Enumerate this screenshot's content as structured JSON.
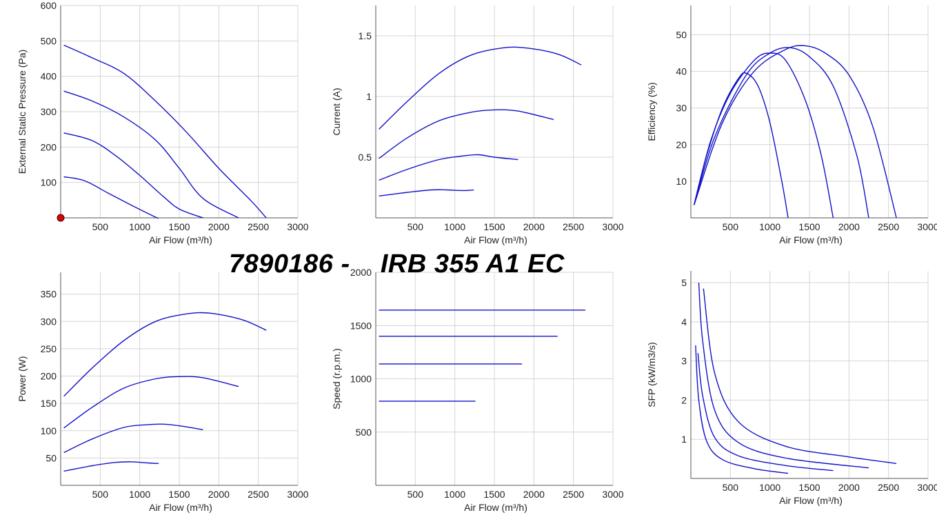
{
  "title": "7890186 -    IRB 355 A1 EC",
  "colors": {
    "curve": "#1010c8",
    "grid": "#d4d4d4",
    "marker": "#e00000"
  },
  "chart_data": [
    {
      "type": "line",
      "xlabel": "Air Flow (m³/h)",
      "ylabel": "External Static Pressure (Pa)",
      "xlim": [
        0,
        3000
      ],
      "ylim": [
        0,
        600
      ],
      "xticks": [
        500,
        1000,
        1500,
        2000,
        2500,
        3000
      ],
      "xtick_labels": [
        "500",
        "1000",
        "1500",
        "2000",
        "2500",
        "3000"
      ],
      "yticks": [
        100,
        200,
        300,
        400,
        500,
        600
      ],
      "ytick_labels": [
        "100",
        "200",
        "300",
        "400",
        "500",
        "600"
      ],
      "grid": true,
      "marker": {
        "x": 0,
        "y": 0
      },
      "series": [
        {
          "points": [
            [
              40,
              488
            ],
            [
              400,
              452
            ],
            [
              800,
              408
            ],
            [
              1200,
              330
            ],
            [
              1600,
              240
            ],
            [
              2000,
              140
            ],
            [
              2400,
              50
            ],
            [
              2600,
              0
            ]
          ]
        },
        {
          "points": [
            [
              40,
              358
            ],
            [
              400,
              330
            ],
            [
              800,
              285
            ],
            [
              1200,
              220
            ],
            [
              1500,
              140
            ],
            [
              1800,
              55
            ],
            [
              2250,
              0
            ]
          ]
        },
        {
          "points": [
            [
              40,
              240
            ],
            [
              400,
              218
            ],
            [
              700,
              175
            ],
            [
              1000,
              120
            ],
            [
              1300,
              60
            ],
            [
              1500,
              25
            ],
            [
              1800,
              0
            ]
          ]
        },
        {
          "points": [
            [
              40,
              116
            ],
            [
              300,
              105
            ],
            [
              600,
              70
            ],
            [
              900,
              35
            ],
            [
              1200,
              2
            ],
            [
              1230,
              0
            ]
          ]
        }
      ]
    },
    {
      "type": "line",
      "xlabel": "Air Flow (m³/h)",
      "ylabel": "Current (A)",
      "xlim": [
        0,
        3000
      ],
      "ylim": [
        0,
        1.75
      ],
      "xticks": [
        500,
        1000,
        1500,
        2000,
        2500,
        3000
      ],
      "xtick_labels": [
        "500",
        "1000",
        "1500",
        "2000",
        "2500",
        "3000"
      ],
      "yticks": [
        0.5,
        1,
        1.5
      ],
      "ytick_labels": [
        "0.5",
        "1",
        "1.5"
      ],
      "grid": true,
      "series": [
        {
          "points": [
            [
              40,
              0.73
            ],
            [
              400,
              0.96
            ],
            [
              800,
              1.19
            ],
            [
              1200,
              1.34
            ],
            [
              1600,
              1.4
            ],
            [
              1900,
              1.4
            ],
            [
              2300,
              1.35
            ],
            [
              2600,
              1.26
            ]
          ]
        },
        {
          "points": [
            [
              40,
              0.49
            ],
            [
              400,
              0.66
            ],
            [
              800,
              0.8
            ],
            [
              1200,
              0.87
            ],
            [
              1500,
              0.89
            ],
            [
              1800,
              0.88
            ],
            [
              2250,
              0.81
            ]
          ]
        },
        {
          "points": [
            [
              40,
              0.31
            ],
            [
              400,
              0.4
            ],
            [
              800,
              0.48
            ],
            [
              1100,
              0.51
            ],
            [
              1300,
              0.52
            ],
            [
              1500,
              0.5
            ],
            [
              1800,
              0.48
            ]
          ]
        },
        {
          "points": [
            [
              40,
              0.18
            ],
            [
              400,
              0.21
            ],
            [
              700,
              0.23
            ],
            [
              900,
              0.23
            ],
            [
              1100,
              0.225
            ],
            [
              1240,
              0.23
            ]
          ]
        }
      ]
    },
    {
      "type": "line",
      "xlabel": "Air Flow (m³/h)",
      "ylabel": "Efficiency (%)",
      "xlim": [
        0,
        3000
      ],
      "ylim": [
        0,
        58
      ],
      "xticks": [
        500,
        1000,
        1500,
        2000,
        2500,
        3000
      ],
      "xtick_labels": [
        "500",
        "1000",
        "1500",
        "2000",
        "2500",
        "3000"
      ],
      "yticks": [
        10,
        20,
        30,
        40,
        50
      ],
      "ytick_labels": [
        "10",
        "20",
        "30",
        "40",
        "50"
      ],
      "grid": true,
      "series": [
        {
          "points": [
            [
              40,
              3.5
            ],
            [
              200,
              17
            ],
            [
              400,
              30
            ],
            [
              600,
              38
            ],
            [
              700,
              39.5
            ],
            [
              850,
              36
            ],
            [
              1000,
              26
            ],
            [
              1150,
              10
            ],
            [
              1230,
              0
            ]
          ]
        },
        {
          "points": [
            [
              40,
              3.5
            ],
            [
              250,
              21
            ],
            [
              500,
              34
            ],
            [
              800,
              43
            ],
            [
              1000,
              45
            ],
            [
              1200,
              43
            ],
            [
              1450,
              32
            ],
            [
              1650,
              17
            ],
            [
              1800,
              0
            ]
          ]
        },
        {
          "points": [
            [
              40,
              3.5
            ],
            [
              300,
              22
            ],
            [
              700,
              39
            ],
            [
              1000,
              45
            ],
            [
              1250,
              46.5
            ],
            [
              1500,
              44
            ],
            [
              1800,
              36
            ],
            [
              2100,
              17
            ],
            [
              2250,
              0
            ]
          ]
        },
        {
          "points": [
            [
              40,
              3.5
            ],
            [
              400,
              26
            ],
            [
              800,
              40
            ],
            [
              1200,
              46
            ],
            [
              1450,
              47
            ],
            [
              1700,
              45
            ],
            [
              2000,
              39
            ],
            [
              2300,
              25
            ],
            [
              2600,
              0
            ]
          ]
        }
      ]
    },
    {
      "type": "line",
      "xlabel": "Air Flow (m³/h)",
      "ylabel": "Power (W)",
      "xlim": [
        0,
        3000
      ],
      "ylim": [
        0,
        390
      ],
      "xticks": [
        500,
        1000,
        1500,
        2000,
        2500,
        3000
      ],
      "xtick_labels": [
        "500",
        "1000",
        "1500",
        "2000",
        "2500",
        "3000"
      ],
      "yticks": [
        50,
        100,
        150,
        200,
        250,
        300,
        350
      ],
      "ytick_labels": [
        "50",
        "100",
        "150",
        "200",
        "250",
        "300",
        "350"
      ],
      "grid": true,
      "series": [
        {
          "points": [
            [
              40,
              163
            ],
            [
              400,
              215
            ],
            [
              800,
              265
            ],
            [
              1200,
              300
            ],
            [
              1600,
              314
            ],
            [
              1900,
              315
            ],
            [
              2300,
              303
            ],
            [
              2600,
              284
            ]
          ]
        },
        {
          "points": [
            [
              40,
              105
            ],
            [
              400,
              143
            ],
            [
              800,
              178
            ],
            [
              1200,
              195
            ],
            [
              1500,
              199
            ],
            [
              1800,
              197
            ],
            [
              2250,
              181
            ]
          ]
        },
        {
          "points": [
            [
              40,
              60
            ],
            [
              400,
              85
            ],
            [
              800,
              106
            ],
            [
              1100,
              111
            ],
            [
              1300,
              112
            ],
            [
              1500,
              109
            ],
            [
              1800,
              102
            ]
          ]
        },
        {
          "points": [
            [
              40,
              26
            ],
            [
              400,
              36
            ],
            [
              700,
              42
            ],
            [
              900,
              43
            ],
            [
              1100,
              41
            ],
            [
              1240,
              40
            ]
          ]
        }
      ]
    },
    {
      "type": "line",
      "xlabel": "Air Flow (m³/h)",
      "ylabel": "Speed (r.p.m.)",
      "xlim": [
        0,
        3000
      ],
      "ylim": [
        0,
        2000
      ],
      "xticks": [
        500,
        1000,
        1500,
        2000,
        2500,
        3000
      ],
      "xtick_labels": [
        "500",
        "1000",
        "1500",
        "2000",
        "2500",
        "3000"
      ],
      "yticks": [
        500,
        1000,
        1500,
        2000
      ],
      "ytick_labels": [
        "500",
        "1000",
        "1500",
        "2000"
      ],
      "grid": true,
      "series": [
        {
          "points": [
            [
              40,
              1645
            ],
            [
              2650,
              1645
            ]
          ]
        },
        {
          "points": [
            [
              40,
              1400
            ],
            [
              2300,
              1400
            ]
          ]
        },
        {
          "points": [
            [
              40,
              1140
            ],
            [
              1850,
              1140
            ]
          ]
        },
        {
          "points": [
            [
              40,
              790
            ],
            [
              1260,
              790
            ]
          ]
        }
      ]
    },
    {
      "type": "line",
      "xlabel": "Air Flow (m³/h)",
      "ylabel": "SFP (kW/m3/s)",
      "xlim": [
        0,
        3000
      ],
      "ylim": [
        0,
        5.3
      ],
      "xticks": [
        500,
        1000,
        1500,
        2000,
        2500,
        3000
      ],
      "xtick_labels": [
        "500",
        "1000",
        "1500",
        "2000",
        "2500",
        "3000"
      ],
      "yticks": [
        1,
        2,
        3,
        4,
        5
      ],
      "ytick_labels": [
        "1",
        "2",
        "3",
        "4",
        "5"
      ],
      "grid": true,
      "series": [
        {
          "points": [
            [
              60,
              3.4
            ],
            [
              100,
              2.0
            ],
            [
              200,
              0.95
            ],
            [
              400,
              0.48
            ],
            [
              800,
              0.25
            ],
            [
              1230,
              0.13
            ]
          ]
        },
        {
          "points": [
            [
              90,
              3.2
            ],
            [
              150,
              2.1
            ],
            [
              300,
              1.05
            ],
            [
              600,
              0.58
            ],
            [
              1200,
              0.33
            ],
            [
              1800,
              0.2
            ]
          ]
        },
        {
          "points": [
            [
              100,
              5.0
            ],
            [
              150,
              3.5
            ],
            [
              300,
              1.75
            ],
            [
              600,
              0.92
            ],
            [
              1200,
              0.52
            ],
            [
              2250,
              0.27
            ]
          ]
        },
        {
          "points": [
            [
              160,
              4.85
            ],
            [
              300,
              2.7
            ],
            [
              600,
              1.45
            ],
            [
              1200,
              0.82
            ],
            [
              2000,
              0.55
            ],
            [
              2600,
              0.38
            ]
          ]
        }
      ]
    }
  ]
}
